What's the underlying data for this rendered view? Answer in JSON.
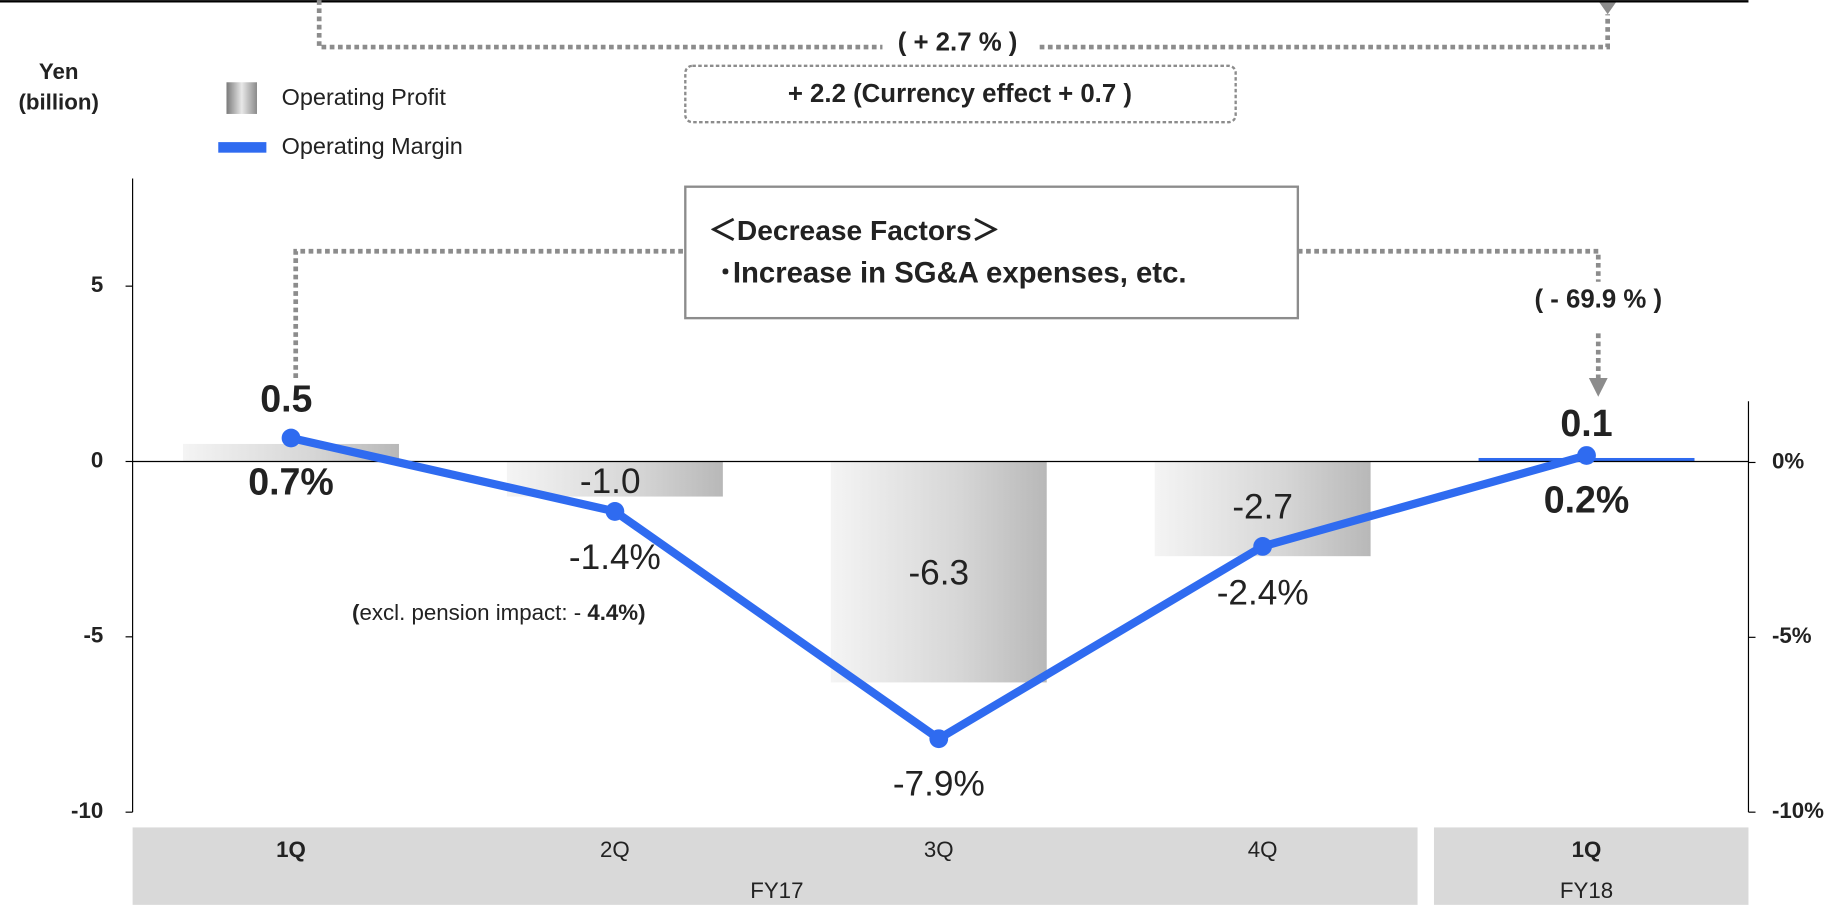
{
  "chart_data": {
    "type": "bar_line",
    "y_label": [
      "Yen",
      "(billion)"
    ],
    "categories": [
      "1Q",
      "2Q",
      "3Q",
      "4Q",
      "1Q"
    ],
    "groups": [
      {
        "label": "FY17",
        "span": [
          0,
          3
        ]
      },
      {
        "label": "FY18",
        "span": [
          4,
          4
        ]
      }
    ],
    "series": [
      {
        "name": "Operating Profit",
        "type": "bar",
        "color": "#bfbfbf",
        "values": [
          0.5,
          -1.0,
          -6.3,
          -2.7,
          0.1
        ],
        "value_labels": [
          "0.5",
          "-1.0",
          "-6.3",
          "-2.7",
          "0.1"
        ]
      },
      {
        "name": "Operating Margin",
        "type": "line",
        "axis": "y2",
        "color": "#2f6bf0",
        "values": [
          0.7,
          -1.4,
          -7.9,
          -2.4,
          0.2
        ],
        "value_labels": [
          "0.7%",
          "-1.4%",
          "-7.9%",
          "-2.4%",
          "0.2%"
        ]
      }
    ],
    "ylim": [
      -10,
      8.07
    ],
    "yticks": [
      5,
      0,
      -5,
      -10
    ],
    "y2lim": [
      -10,
      1.75
    ],
    "y2ticks": [
      {
        "value": 0,
        "label": "0%"
      },
      {
        "value": -5,
        "label": "-5%"
      },
      {
        "value": -10,
        "label": "-10%"
      }
    ],
    "annotations": {
      "yoy_total": "( + 2.7 % )",
      "change_box": "+ 2.2 (Currency effect + 0.7 )",
      "factors_title": "＜Decrease Factors＞",
      "factors_item": "･Increase in SG&A expenses, etc.",
      "yoy_quarter": "( - 69.9 % )",
      "pension_note": [
        "(",
        "excl. pension impact: - ",
        "4.4%)"
      ]
    }
  }
}
